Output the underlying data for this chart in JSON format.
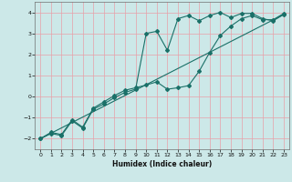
{
  "xlabel": "Humidex (Indice chaleur)",
  "bg_color": "#cce8e8",
  "line_color": "#1a7068",
  "grid_color": "#e8a0a8",
  "xlim": [
    -0.5,
    23.5
  ],
  "ylim": [
    -2.5,
    4.5
  ],
  "xticks": [
    0,
    1,
    2,
    3,
    4,
    5,
    6,
    7,
    8,
    9,
    10,
    11,
    12,
    13,
    14,
    15,
    16,
    17,
    18,
    19,
    20,
    21,
    22,
    23
  ],
  "yticks": [
    -2,
    -1,
    0,
    1,
    2,
    3,
    4
  ],
  "line1_x": [
    0,
    1,
    2,
    3,
    4,
    5,
    6,
    7,
    8,
    9,
    10,
    11,
    12,
    13,
    14,
    15,
    16,
    17,
    18,
    19,
    20,
    21,
    22,
    23
  ],
  "line1_y": [
    -2.0,
    -1.75,
    -1.85,
    -1.15,
    -1.5,
    -0.6,
    -0.35,
    -0.05,
    0.2,
    0.35,
    3.0,
    3.1,
    2.2,
    3.7,
    3.85,
    3.6,
    3.85,
    4.0,
    3.75,
    3.95,
    3.95,
    3.7,
    3.6,
    3.9
  ],
  "line2_x": [
    0,
    1,
    2,
    3,
    4,
    5,
    6,
    7,
    8,
    9,
    10,
    11,
    12,
    13,
    14,
    15,
    16,
    17,
    18,
    19,
    20,
    21,
    22,
    23
  ],
  "line2_y": [
    -2.0,
    -1.7,
    -1.8,
    -1.1,
    -1.45,
    -0.55,
    -0.25,
    0.05,
    0.3,
    0.42,
    0.55,
    0.7,
    0.35,
    0.42,
    0.52,
    1.2,
    2.1,
    2.9,
    3.35,
    3.7,
    3.85,
    3.65,
    3.65,
    3.95
  ],
  "line3_x": [
    0,
    23
  ],
  "line3_y": [
    -2.0,
    3.9
  ]
}
